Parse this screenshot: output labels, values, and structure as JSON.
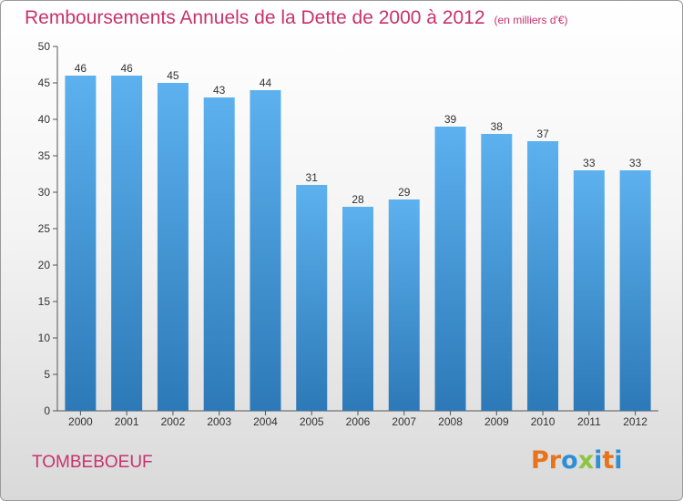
{
  "header": {
    "title": "Remboursements Annuels de la Dette de 2000 à 2012",
    "unit": "(en milliers d'€)"
  },
  "footer": {
    "commune": "TOMBEBOEUF",
    "brand": "Proxiti",
    "brand_colors": [
      "#e8731a",
      "#e8731a",
      "#2e8fd6",
      "#8cc63f",
      "#2e8fd6",
      "#e8731a",
      "#2e8fd6"
    ]
  },
  "chart_data": {
    "type": "bar",
    "categories": [
      "2000",
      "2001",
      "2002",
      "2003",
      "2004",
      "2005",
      "2006",
      "2007",
      "2008",
      "2009",
      "2010",
      "2011",
      "2012"
    ],
    "values": [
      46,
      46,
      45,
      43,
      44,
      31,
      28,
      29,
      39,
      38,
      37,
      33,
      33
    ],
    "ylim": [
      0,
      50
    ],
    "yticks": [
      0,
      5,
      10,
      15,
      20,
      25,
      30,
      35,
      40,
      45,
      50
    ],
    "grid": false,
    "bar_color_top": "#5cb1ee",
    "bar_color_bottom": "#2d79b8",
    "title_color": "#c8326c"
  }
}
